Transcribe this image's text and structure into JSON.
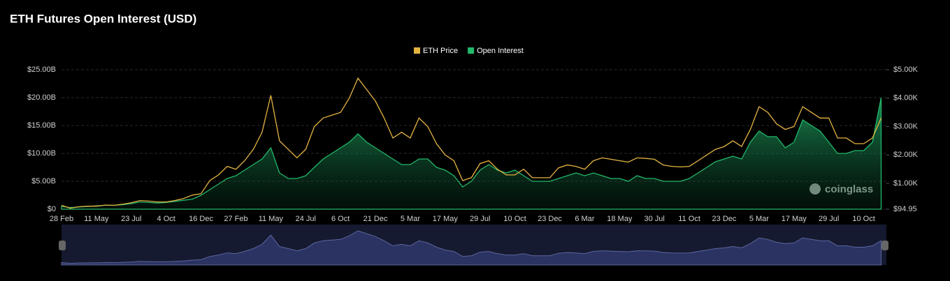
{
  "chart_data": {
    "type": "line",
    "title": "ETH Futures Open Interest (USD)",
    "watermark": "coinglass",
    "legend": "top",
    "grid": true,
    "categories": [
      "28 Feb",
      null,
      null,
      null,
      "11 May",
      null,
      null,
      null,
      "23 Jul",
      null,
      null,
      null,
      "4 Oct",
      null,
      null,
      null,
      "16 Dec",
      null,
      null,
      null,
      "27 Feb",
      null,
      null,
      null,
      "11 May",
      null,
      null,
      null,
      "24 Jul",
      null,
      null,
      null,
      "6 Oct",
      null,
      null,
      null,
      "21 Dec",
      null,
      null,
      null,
      "5 Mar",
      null,
      null,
      null,
      "17 May",
      null,
      null,
      null,
      "29 Jul",
      null,
      null,
      null,
      "10 Oct",
      null,
      null,
      null,
      "23 Dec",
      null,
      null,
      null,
      "6 Mar",
      null,
      null,
      null,
      "18 May",
      null,
      null,
      null,
      "30 Jul",
      null,
      null,
      null,
      "11 Oct",
      null,
      null,
      null,
      "23 Dec",
      null,
      null,
      null,
      "5 Mar",
      null,
      null,
      null,
      "17 May",
      null,
      null,
      null,
      "29 Jul",
      null,
      null,
      null,
      "10 Oct",
      null,
      null
    ],
    "series": [
      {
        "name": "ETH Price",
        "color": "#e3b341",
        "axis": "y2",
        "values": [
          230,
          130,
          180,
          200,
          200,
          240,
          230,
          270,
          320,
          400,
          380,
          350,
          350,
          400,
          470,
          590,
          640,
          1100,
          1300,
          1600,
          1500,
          1800,
          2200,
          2800,
          4100,
          2500,
          2200,
          1900,
          2200,
          3000,
          3300,
          3400,
          3500,
          4000,
          4700,
          4300,
          3900,
          3300,
          2600,
          2800,
          2600,
          3300,
          3000,
          2400,
          2000,
          1800,
          1100,
          1200,
          1700,
          1800,
          1500,
          1300,
          1300,
          1500,
          1200,
          1200,
          1200,
          1550,
          1650,
          1600,
          1500,
          1800,
          1900,
          1850,
          1800,
          1750,
          1900,
          1880,
          1850,
          1650,
          1600,
          1580,
          1600,
          1800,
          2000,
          2200,
          2300,
          2500,
          2300,
          2900,
          3700,
          3500,
          3100,
          2900,
          3000,
          3700,
          3500,
          3300,
          3300,
          2600,
          2600,
          2400,
          2400,
          2600,
          3300
        ]
      },
      {
        "name": "Open Interest",
        "color": "#22b86b",
        "axis": "y",
        "values": [
          0.5,
          0.3,
          0.4,
          0.5,
          0.6,
          0.7,
          0.7,
          0.8,
          1.0,
          1.3,
          1.2,
          1.1,
          1.2,
          1.4,
          1.6,
          1.8,
          2.5,
          3.5,
          4.5,
          5.5,
          6,
          7,
          8,
          9,
          11,
          6.5,
          5.5,
          5.5,
          6,
          7.5,
          9,
          10,
          11,
          12,
          13.5,
          12,
          11,
          10,
          9,
          8,
          8,
          9,
          9,
          7.5,
          7,
          6,
          4,
          5,
          7,
          8,
          7,
          6.5,
          7,
          6,
          5,
          5,
          5,
          5.5,
          6,
          6.5,
          6,
          6.5,
          6,
          5.5,
          5.5,
          5,
          6,
          5.5,
          5.5,
          5,
          5,
          5,
          5.5,
          6.5,
          7.5,
          8.5,
          9,
          9.5,
          9,
          12,
          14,
          13,
          13,
          11,
          12,
          16,
          15,
          14,
          12,
          10,
          10,
          10.5,
          10.5,
          12,
          20
        ]
      }
    ],
    "ylim": [
      0,
      25
    ],
    "yticks": [
      {
        "value": 0,
        "label": "$0"
      },
      {
        "value": 5,
        "label": "$5.00B"
      },
      {
        "value": 10,
        "label": "$10.00B"
      },
      {
        "value": 15,
        "label": "$15.00B"
      },
      {
        "value": 20,
        "label": "$20.00B"
      },
      {
        "value": 25,
        "label": "$25.00B"
      }
    ],
    "y2lim": [
      94.95,
      5000
    ],
    "y2ticks": [
      {
        "value": 94.95,
        "label": "$94.95"
      },
      {
        "value": 1000,
        "label": "$1.00K"
      },
      {
        "value": 2000,
        "label": "$2.00K"
      },
      {
        "value": 3000,
        "label": "$3.00K"
      },
      {
        "value": 4000,
        "label": "$4.00K"
      },
      {
        "value": 5000,
        "label": "$5.00K"
      }
    ]
  }
}
